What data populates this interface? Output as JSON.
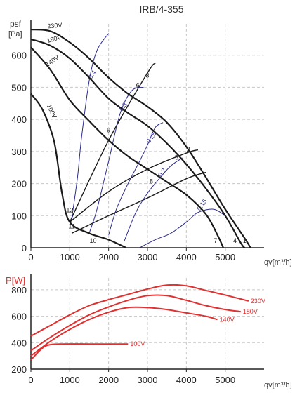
{
  "chart_data": [
    {
      "type": "line",
      "title": "IRB/4-355",
      "ylabel_line1": "psf",
      "ylabel_line2": "[Pa]",
      "xlabel": "qv[m³/h]",
      "xlim": [
        0,
        6000
      ],
      "ylim": [
        0,
        700
      ],
      "xticks": [
        "0",
        "1000",
        "2000",
        "3000",
        "4000",
        "5000"
      ],
      "xtick_values": [
        0,
        1000,
        2000,
        3000,
        4000,
        5000
      ],
      "yticks": [
        "0",
        "100",
        "200",
        "300",
        "400",
        "500",
        "600"
      ],
      "ytick_values": [
        0,
        100,
        200,
        300,
        400,
        500,
        600
      ],
      "colors": {
        "fan": "#1a1a1a",
        "efficiency": "#2b2b8c",
        "grid": "#c8c8c8"
      },
      "fan_curves": [
        {
          "label": "230V",
          "points": [
            [
              0,
              680
            ],
            [
              500,
              675
            ],
            [
              1000,
              640
            ],
            [
              1500,
              590
            ],
            [
              2000,
              530
            ],
            [
              2500,
              480
            ],
            [
              3000,
              440
            ],
            [
              3500,
              390
            ],
            [
              4000,
              315
            ],
            [
              4500,
              220
            ],
            [
              5000,
              120
            ],
            [
              5500,
              30
            ],
            [
              5650,
              0
            ]
          ]
        },
        {
          "label": "180V",
          "points": [
            [
              0,
              650
            ],
            [
              500,
              630
            ],
            [
              1000,
              590
            ],
            [
              1500,
              530
            ],
            [
              2000,
              465
            ],
            [
              2500,
              420
            ],
            [
              3000,
              380
            ],
            [
              3500,
              325
            ],
            [
              4000,
              260
            ],
            [
              4500,
              185
            ],
            [
              5000,
              100
            ],
            [
              5400,
              15
            ],
            [
              5500,
              0
            ]
          ]
        },
        {
          "label": "140V",
          "points": [
            [
              0,
              625
            ],
            [
              500,
              555
            ],
            [
              1000,
              460
            ],
            [
              1500,
              395
            ],
            [
              2000,
              335
            ],
            [
              2500,
              285
            ],
            [
              3000,
              245
            ],
            [
              3500,
              205
            ],
            [
              4000,
              165
            ],
            [
              4500,
              105
            ],
            [
              4800,
              40
            ],
            [
              4950,
              0
            ]
          ]
        },
        {
          "label": "100V",
          "points": [
            [
              0,
              480
            ],
            [
              300,
              430
            ],
            [
              600,
              330
            ],
            [
              800,
              170
            ],
            [
              1000,
              80
            ],
            [
              1500,
              45
            ],
            [
              2000,
              25
            ],
            [
              2450,
              0
            ]
          ]
        }
      ],
      "system_curves": [
        {
          "points": [
            [
              1000,
              80
            ],
            [
              2000,
              335
            ],
            [
              3000,
              545
            ],
            [
              3200,
              575
            ]
          ]
        },
        {
          "points": [
            [
              1000,
              80
            ],
            [
              2000,
              175
            ],
            [
              3000,
              245
            ],
            [
              4000,
              295
            ],
            [
              4300,
              305
            ]
          ]
        },
        {
          "points": [
            [
              1050,
              45
            ],
            [
              2000,
              100
            ],
            [
              3000,
              155
            ],
            [
              4000,
              215
            ],
            [
              4500,
              235
            ]
          ]
        }
      ],
      "efficiency_curves": [
        {
          "label": "0.4",
          "points": [
            [
              1050,
              90
            ],
            [
              1200,
              220
            ],
            [
              1300,
              340
            ],
            [
              1500,
              520
            ],
            [
              1700,
              615
            ],
            [
              2000,
              668
            ]
          ]
        },
        {
          "label": "0.3",
          "points": [
            [
              1500,
              45
            ],
            [
              1700,
              120
            ],
            [
              2000,
              270
            ],
            [
              2300,
              420
            ],
            [
              2600,
              490
            ],
            [
              2900,
              500
            ]
          ]
        },
        {
          "label": "0.25",
          "points": [
            [
              2000,
              40
            ],
            [
              2200,
              120
            ],
            [
              2500,
              200
            ],
            [
              2800,
              270
            ],
            [
              3000,
              320
            ],
            [
              3200,
              375
            ],
            [
              3400,
              390
            ]
          ]
        },
        {
          "label": "0.2",
          "points": [
            [
              2400,
              20
            ],
            [
              2700,
              110
            ],
            [
              3000,
              170
            ],
            [
              3300,
              215
            ],
            [
              3600,
              255
            ],
            [
              3900,
              280
            ]
          ]
        },
        {
          "label": "0.15",
          "points": [
            [
              2800,
              0
            ],
            [
              3200,
              25
            ],
            [
              3600,
              45
            ],
            [
              4000,
              80
            ],
            [
              4300,
              110
            ],
            [
              4700,
              120
            ],
            [
              5000,
              100
            ]
          ]
        }
      ],
      "point_labels": [
        {
          "label": "1",
          "x": 5500,
          "y": 15
        },
        {
          "label": "2",
          "x": 4050,
          "y": 300
        },
        {
          "label": "3",
          "x": 3000,
          "y": 530
        },
        {
          "label": "4",
          "x": 5250,
          "y": 15
        },
        {
          "label": "5",
          "x": 3750,
          "y": 275
        },
        {
          "label": "6",
          "x": 2750,
          "y": 500
        },
        {
          "label": "7",
          "x": 4750,
          "y": 15
        },
        {
          "label": "8",
          "x": 3100,
          "y": 200
        },
        {
          "label": "9",
          "x": 2000,
          "y": 360
        },
        {
          "label": "10",
          "x": 1600,
          "y": 15
        },
        {
          "label": "11",
          "x": 1050,
          "y": 60
        },
        {
          "label": "12",
          "x": 1000,
          "y": 110
        }
      ]
    },
    {
      "type": "line",
      "ylabel": "P[W]",
      "xlabel": "qv[m³/h]",
      "xlim": [
        0,
        6000
      ],
      "ylim": [
        200,
        900
      ],
      "xticks": [
        "0",
        "1000",
        "2000",
        "3000",
        "4000",
        "5000"
      ],
      "xtick_values": [
        0,
        1000,
        2000,
        3000,
        4000,
        5000
      ],
      "yticks": [
        "200",
        "400",
        "600",
        "800"
      ],
      "ytick_values": [
        200,
        400,
        600,
        800
      ],
      "colors": {
        "line": "#e03030",
        "label": "#e03030",
        "grid": "#c8c8c8"
      },
      "series": [
        {
          "name": "230V",
          "points": [
            [
              0,
              450
            ],
            [
              500,
              530
            ],
            [
              1000,
              610
            ],
            [
              1500,
              680
            ],
            [
              2000,
              725
            ],
            [
              2500,
              765
            ],
            [
              3000,
              805
            ],
            [
              3500,
              835
            ],
            [
              4000,
              830
            ],
            [
              4500,
              795
            ],
            [
              5000,
              760
            ],
            [
              5600,
              715
            ]
          ]
        },
        {
          "name": "180V",
          "points": [
            [
              0,
              340
            ],
            [
              500,
              440
            ],
            [
              1000,
              530
            ],
            [
              1500,
              610
            ],
            [
              2000,
              670
            ],
            [
              2500,
              720
            ],
            [
              3000,
              755
            ],
            [
              3500,
              755
            ],
            [
              4000,
              720
            ],
            [
              4500,
              680
            ],
            [
              5000,
              650
            ],
            [
              5400,
              635
            ]
          ]
        },
        {
          "name": "140V",
          "points": [
            [
              0,
              300
            ],
            [
              500,
              410
            ],
            [
              1000,
              500
            ],
            [
              1500,
              575
            ],
            [
              2000,
              630
            ],
            [
              2500,
              665
            ],
            [
              3000,
              665
            ],
            [
              3500,
              650
            ],
            [
              4000,
              625
            ],
            [
              4500,
              600
            ],
            [
              4800,
              575
            ]
          ]
        },
        {
          "name": "100V",
          "points": [
            [
              0,
              270
            ],
            [
              300,
              360
            ],
            [
              500,
              385
            ],
            [
              800,
              390
            ],
            [
              1500,
              390
            ],
            [
              2000,
              390
            ],
            [
              2500,
              390
            ]
          ]
        }
      ]
    }
  ]
}
